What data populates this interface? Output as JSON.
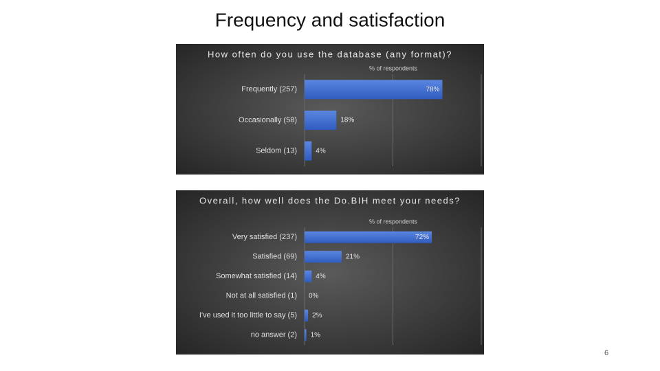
{
  "title": "Frequency and satisfaction",
  "page_number": "6",
  "chart_data": [
    {
      "type": "bar",
      "orientation": "horizontal",
      "title": "How often do you use the database (any format)?",
      "subtitle": "% of respondents",
      "categories": [
        "Frequently (257)",
        "Occasionally (58)",
        "Seldom (13)"
      ],
      "values": [
        78,
        18,
        4
      ],
      "value_labels": [
        "78%",
        "18%",
        "4%"
      ],
      "color": "#3f6fd1",
      "xlim": [
        0,
        100
      ],
      "xticks": [
        0,
        50,
        100
      ],
      "grid": true
    },
    {
      "type": "bar",
      "orientation": "horizontal",
      "title": "Overall, how well does the Do.BIH meet your needs?",
      "subtitle": "% of respondents",
      "categories": [
        "Very satisfied (237)",
        "Satisfied (69)",
        "Somewhat satisfied (14)",
        "Not at all satisfied (1)",
        "I've used it too little to say (5)",
        "no answer (2)"
      ],
      "values": [
        72,
        21,
        4,
        0,
        2,
        1
      ],
      "value_labels": [
        "72%",
        "21%",
        "4%",
        "0%",
        "2%",
        "1%"
      ],
      "color": "#3f6fd1",
      "xlim": [
        0,
        100
      ],
      "xticks": [
        0,
        50,
        100
      ],
      "grid": true
    }
  ]
}
